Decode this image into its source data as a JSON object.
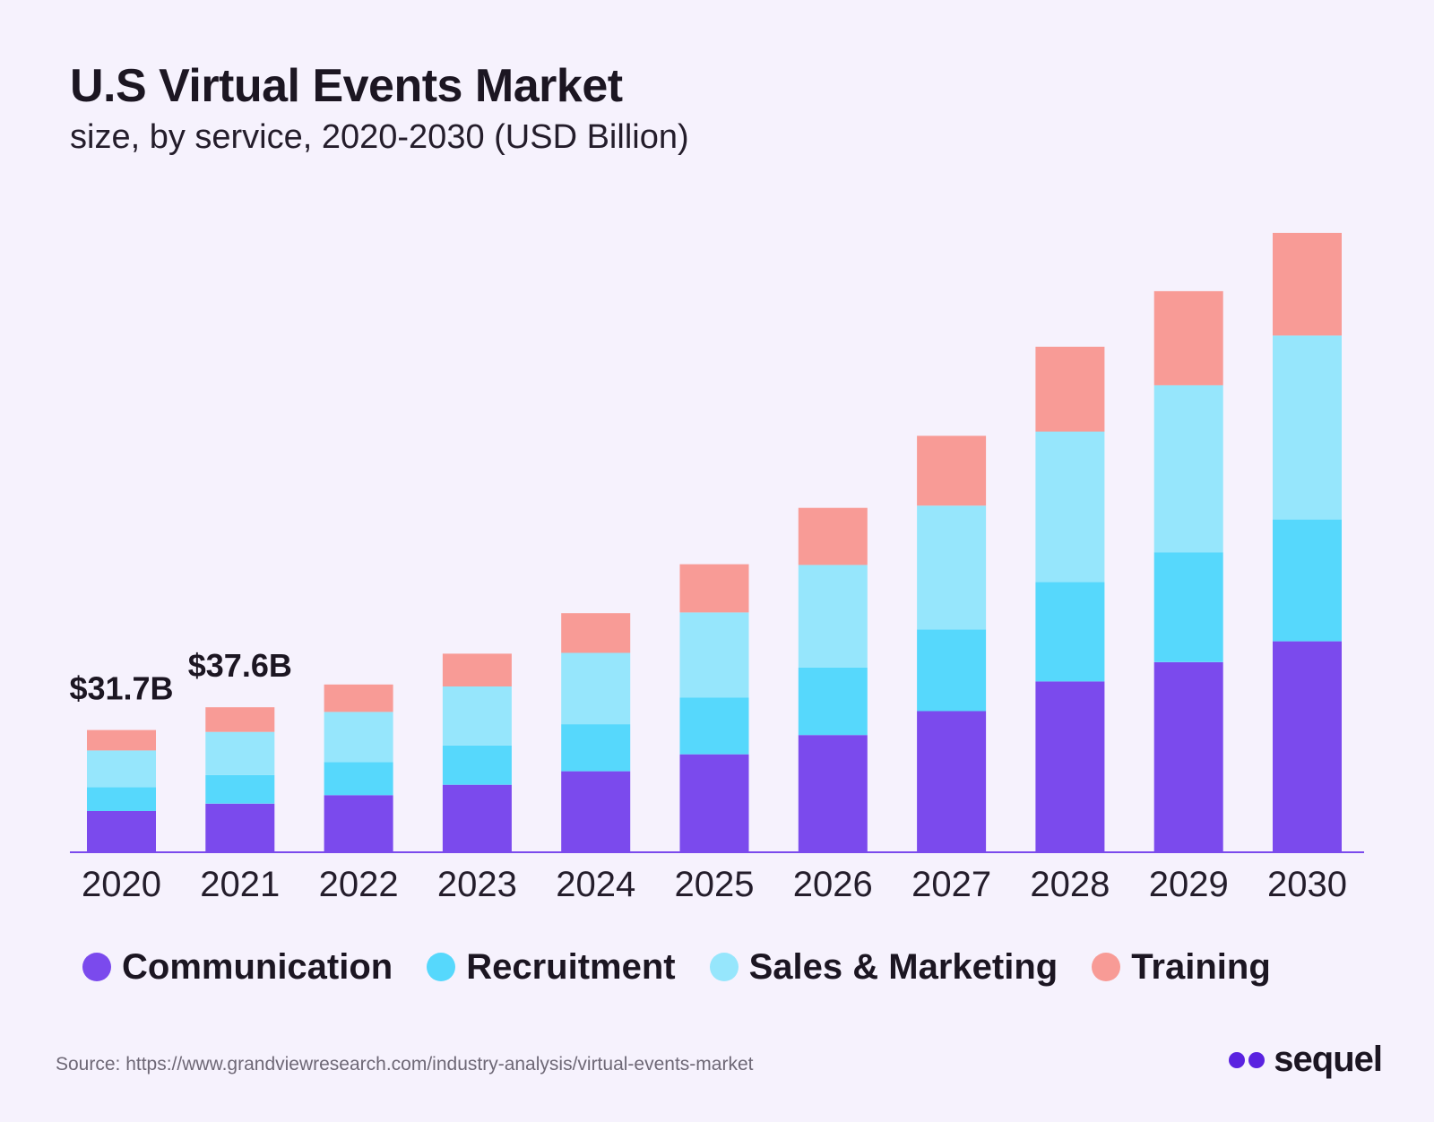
{
  "header": {
    "title": "U.S Virtual Events Market",
    "subtitle": "size, by service, 2020-2030 (USD Billion)"
  },
  "colors": {
    "communication": "#7b4aed",
    "recruitment": "#56d8fc",
    "sales_marketing": "#96e6fc",
    "training": "#f89b96",
    "axis": "#7b4aed"
  },
  "chart_data": {
    "type": "bar",
    "stacked": true,
    "categories": [
      "2020",
      "2021",
      "2022",
      "2023",
      "2024",
      "2025",
      "2026",
      "2027",
      "2028",
      "2029",
      "2030"
    ],
    "series": [
      {
        "name": "Communication",
        "color": "#7b4aed",
        "values": [
          10.7,
          12.6,
          14.8,
          17.5,
          21.0,
          25.4,
          30.4,
          36.6,
          44.3,
          49.3,
          54.7
        ]
      },
      {
        "name": "Recruitment",
        "color": "#56d8fc",
        "values": [
          6.2,
          7.4,
          8.6,
          10.2,
          12.2,
          14.7,
          17.5,
          21.2,
          25.8,
          28.5,
          31.6
        ]
      },
      {
        "name": "Sales & Marketing",
        "color": "#96e6fc",
        "values": [
          9.5,
          11.2,
          13.0,
          15.3,
          18.5,
          22.1,
          26.6,
          32.1,
          39.0,
          43.3,
          47.7
        ]
      },
      {
        "name": "Training",
        "color": "#f89b96",
        "values": [
          5.3,
          6.4,
          7.1,
          8.5,
          10.3,
          12.5,
          14.8,
          18.1,
          22.0,
          24.4,
          26.6
        ]
      }
    ],
    "annotations": [
      {
        "category": "2020",
        "text": "$31.7B"
      },
      {
        "category": "2021",
        "text": "$37.6B"
      }
    ],
    "ylim": [
      0,
      165
    ],
    "grid": false,
    "legend": "bottom"
  },
  "footer": {
    "source": "Source: https://www.grandviewresearch.com/industry-analysis/virtual-events-market",
    "brand": "sequel"
  }
}
